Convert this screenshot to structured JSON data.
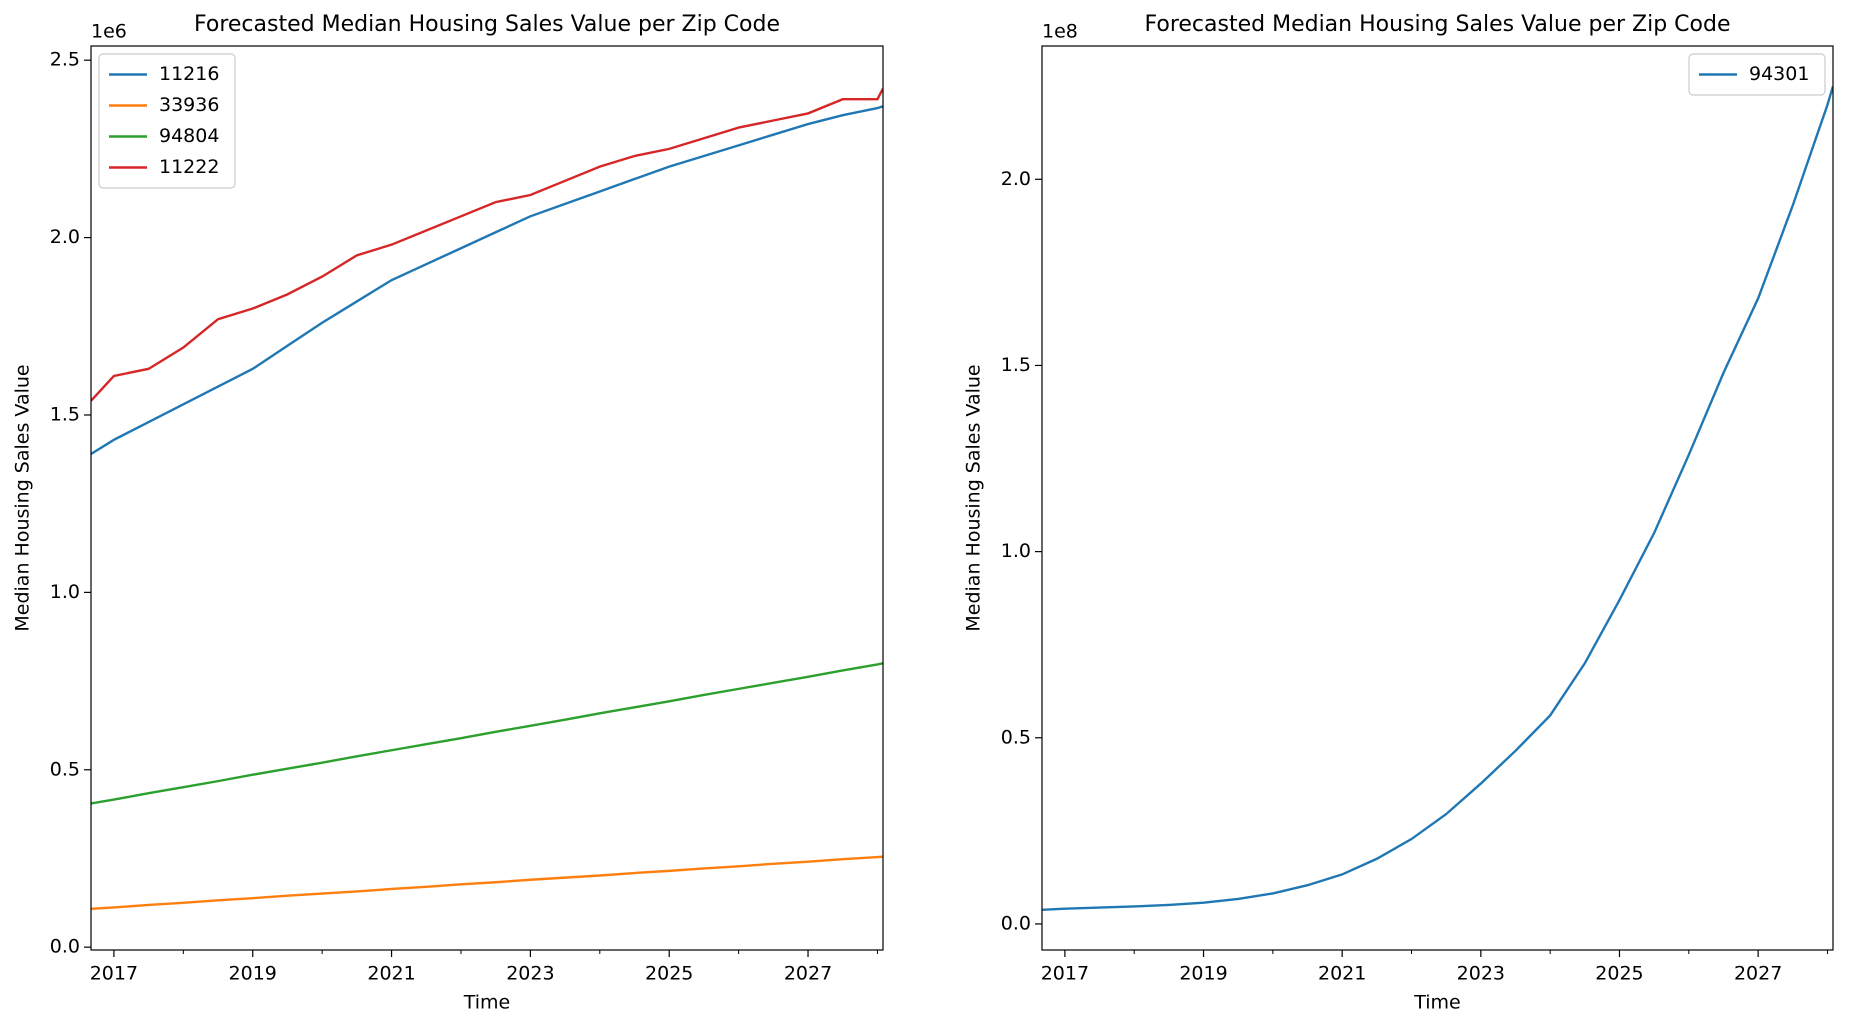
{
  "chart_data": [
    {
      "type": "line",
      "title": "Forecasted Median Housing Sales Value per Zip Code",
      "xlabel": "Time",
      "ylabel": "Median Housing Sales Value",
      "y_offset_label": "1e6",
      "legend": "upper left",
      "x": [
        2016.67,
        2017.0,
        2017.5,
        2018.0,
        2018.5,
        2019.0,
        2019.5,
        2020.0,
        2020.5,
        2021.0,
        2021.5,
        2022.0,
        2022.5,
        2023.0,
        2023.5,
        2024.0,
        2024.5,
        2025.0,
        2025.5,
        2026.0,
        2026.5,
        2027.0,
        2027.5,
        2028.0,
        2028.08
      ],
      "xlim": [
        2016.67,
        2028.08
      ],
      "xticks": [
        2017,
        2019,
        2021,
        2023,
        2025,
        2027
      ],
      "xminorticks": [
        2018,
        2020,
        2022,
        2024,
        2026,
        2028
      ],
      "ylim": [
        -8000,
        2540000
      ],
      "yticks": [
        {
          "value": 0,
          "label": "0.0"
        },
        {
          "value": 500000,
          "label": "0.5"
        },
        {
          "value": 1000000,
          "label": "1.0"
        },
        {
          "value": 1500000,
          "label": "1.5"
        },
        {
          "value": 2000000,
          "label": "2.0"
        },
        {
          "value": 2500000,
          "label": "2.5"
        }
      ],
      "series": [
        {
          "name": "11216",
          "color": "#1f77b4",
          "values": [
            1390000,
            1430000,
            1480000,
            1530000,
            1580000,
            1630000,
            1695000,
            1760000,
            1820000,
            1880000,
            1925000,
            1970000,
            2015000,
            2060000,
            2095000,
            2130000,
            2165000,
            2200000,
            2230000,
            2260000,
            2290000,
            2320000,
            2345000,
            2365000,
            2370000
          ]
        },
        {
          "name": "33936",
          "color": "#ff7f0e",
          "values": [
            108000,
            112000,
            119000,
            125000,
            132000,
            138000,
            145000,
            151000,
            157000,
            164000,
            170000,
            177000,
            183000,
            190000,
            196000,
            202000,
            209000,
            215000,
            222000,
            228000,
            235000,
            241000,
            248000,
            254000,
            255000
          ]
        },
        {
          "name": "94804",
          "color": "#2ca02c",
          "values": [
            405000,
            416000,
            434000,
            451000,
            468000,
            486000,
            503000,
            520000,
            538000,
            555000,
            572000,
            589000,
            607000,
            624000,
            641000,
            659000,
            676000,
            693000,
            711000,
            728000,
            745000,
            762000,
            780000,
            797000,
            800000
          ]
        },
        {
          "name": "11222",
          "color": "#d62728",
          "values": [
            1540000,
            1610000,
            1630000,
            1690000,
            1770000,
            1800000,
            1840000,
            1890000,
            1950000,
            1980000,
            2020000,
            2060000,
            2100000,
            2120000,
            2160000,
            2200000,
            2230000,
            2250000,
            2280000,
            2310000,
            2330000,
            2350000,
            2390000,
            2390000,
            2420000
          ]
        }
      ]
    },
    {
      "type": "line",
      "title": "Forecasted Median Housing Sales Value per Zip Code",
      "xlabel": "Time",
      "ylabel": "Median Housing Sales Value",
      "y_offset_label": "1e8",
      "legend": "upper right",
      "x": [
        2016.67,
        2017.0,
        2017.5,
        2018.0,
        2018.5,
        2019.0,
        2019.5,
        2020.0,
        2020.5,
        2021.0,
        2021.5,
        2022.0,
        2022.5,
        2023.0,
        2023.5,
        2024.0,
        2024.5,
        2025.0,
        2025.5,
        2026.0,
        2026.5,
        2027.0,
        2027.5,
        2028.0,
        2028.08
      ],
      "xlim": [
        2016.67,
        2028.08
      ],
      "xticks": [
        2017,
        2019,
        2021,
        2023,
        2025,
        2027
      ],
      "xminorticks": [
        2018,
        2020,
        2022,
        2024,
        2026,
        2028
      ],
      "ylim": [
        -7000000,
        235800000
      ],
      "yticks": [
        {
          "value": 0,
          "label": "0.0"
        },
        {
          "value": 50000000,
          "label": "0.5"
        },
        {
          "value": 100000000,
          "label": "1.0"
        },
        {
          "value": 150000000,
          "label": "1.5"
        },
        {
          "value": 200000000,
          "label": "2.0"
        }
      ],
      "series": [
        {
          "name": "94301",
          "color": "#1f77b4",
          "values": [
            3800000,
            4100000,
            4400000,
            4700000,
            5100000,
            5700000,
            6700000,
            8200000,
            10400000,
            13300000,
            17500000,
            22800000,
            29500000,
            37700000,
            46500000,
            56000000,
            70000000,
            87000000,
            105000000,
            126000000,
            148000000,
            168000000,
            193000000,
            220000000,
            225000000
          ]
        }
      ]
    }
  ]
}
